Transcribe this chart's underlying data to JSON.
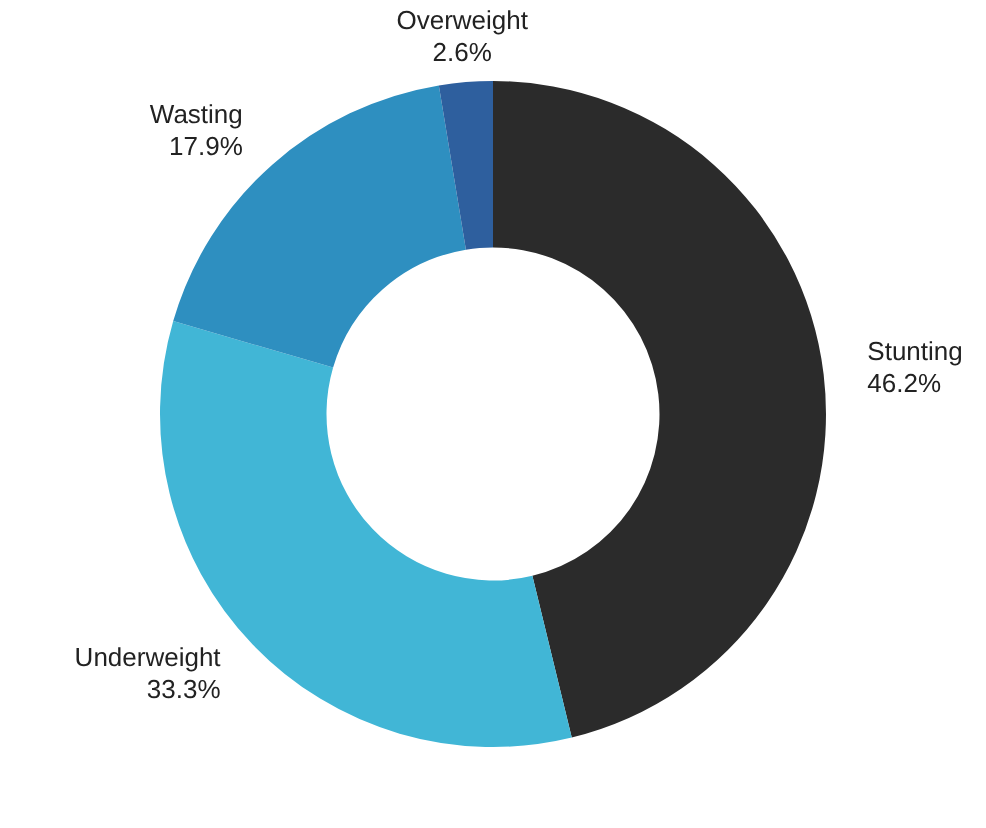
{
  "chart_data": {
    "type": "donut",
    "categories": [
      "Stunting",
      "Underweight",
      "Wasting",
      "Overweight"
    ],
    "values": [
      46.2,
      33.3,
      17.9,
      2.6
    ],
    "value_labels": [
      "46.2%",
      "33.3%",
      "17.9%",
      "2.6%"
    ],
    "colors": [
      "#2b2b2b",
      "#41b6d6",
      "#2e8fc0",
      "#2e5f9e"
    ]
  }
}
